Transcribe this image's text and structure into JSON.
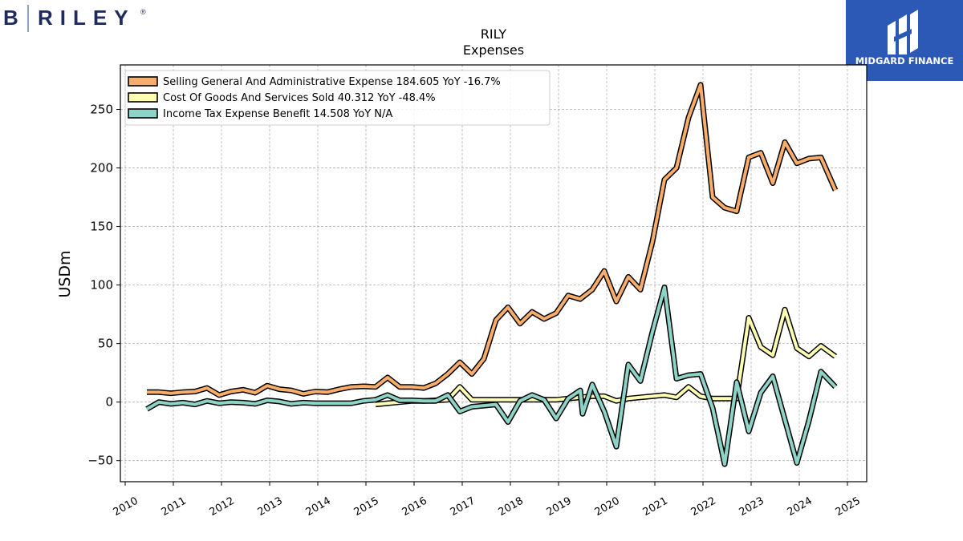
{
  "brand": {
    "left_logo": {
      "b": "B",
      "word": "RILEY",
      "mark": "®",
      "color": "#1d2b5e"
    },
    "right_logo": {
      "text": "MIDGARD FINANCE",
      "color": "#2b59b5"
    }
  },
  "chart_data": {
    "type": "line",
    "title": "RILY",
    "subtitle": "Expenses",
    "ylabel": "USDm",
    "xlabel": "",
    "xlim": [
      2009.9,
      2025.4
    ],
    "ylim": [
      -68,
      288
    ],
    "yticks": [
      -50,
      0,
      50,
      100,
      150,
      200,
      250
    ],
    "ytick_labels": [
      "−50",
      "0",
      "50",
      "100",
      "150",
      "200",
      "250"
    ],
    "xticks": [
      2010,
      2011,
      2012,
      2013,
      2014,
      2015,
      2016,
      2017,
      2018,
      2019,
      2020,
      2021,
      2022,
      2023,
      2024,
      2025
    ],
    "xtick_labels": [
      "2010",
      "2011",
      "2012",
      "2013",
      "2014",
      "2015",
      "2016",
      "2017",
      "2018",
      "2019",
      "2020",
      "2021",
      "2022",
      "2023",
      "2024",
      "2025"
    ],
    "grid": true,
    "legend_position": "top-left",
    "series": [
      {
        "name": "Selling General And Administrative Expense",
        "legend_label": "Selling General And Administrative Expense  184.605 YoY -16.7%",
        "color": "#f9ad6a",
        "points": [
          [
            2010.45,
            8.5
          ],
          [
            2010.7,
            8.5
          ],
          [
            2010.95,
            7.5
          ],
          [
            2011.2,
            8.5
          ],
          [
            2011.45,
            9
          ],
          [
            2011.7,
            12
          ],
          [
            2011.95,
            6
          ],
          [
            2012.2,
            9
          ],
          [
            2012.45,
            10.5
          ],
          [
            2012.7,
            8
          ],
          [
            2012.95,
            14
          ],
          [
            2013.2,
            11
          ],
          [
            2013.45,
            10
          ],
          [
            2013.7,
            7
          ],
          [
            2013.95,
            9
          ],
          [
            2014.2,
            8.5
          ],
          [
            2014.45,
            11
          ],
          [
            2014.7,
            13
          ],
          [
            2014.95,
            13.5
          ],
          [
            2015.2,
            13
          ],
          [
            2015.45,
            21
          ],
          [
            2015.7,
            13
          ],
          [
            2015.95,
            13
          ],
          [
            2016.2,
            12
          ],
          [
            2016.45,
            16
          ],
          [
            2016.7,
            24
          ],
          [
            2016.95,
            34
          ],
          [
            2017.2,
            24
          ],
          [
            2017.45,
            37
          ],
          [
            2017.7,
            70
          ],
          [
            2017.95,
            81
          ],
          [
            2018.2,
            67
          ],
          [
            2018.45,
            77
          ],
          [
            2018.7,
            71
          ],
          [
            2018.95,
            76
          ],
          [
            2019.2,
            91
          ],
          [
            2019.45,
            88
          ],
          [
            2019.7,
            96
          ],
          [
            2019.95,
            112
          ],
          [
            2020.2,
            86
          ],
          [
            2020.45,
            107
          ],
          [
            2020.7,
            96
          ],
          [
            2020.95,
            137
          ],
          [
            2021.2,
            190
          ],
          [
            2021.45,
            200
          ],
          [
            2021.7,
            243
          ],
          [
            2021.95,
            271
          ],
          [
            2022.2,
            175
          ],
          [
            2022.45,
            166
          ],
          [
            2022.7,
            163
          ],
          [
            2022.95,
            209
          ],
          [
            2023.2,
            213
          ],
          [
            2023.45,
            187
          ],
          [
            2023.7,
            222
          ],
          [
            2023.95,
            204
          ],
          [
            2024.2,
            208
          ],
          [
            2024.45,
            209
          ],
          [
            2024.75,
            181
          ]
        ]
      },
      {
        "name": "Cost Of Goods And Services Sold",
        "legend_label": "Cost Of Goods And Services Sold  40.312 YoY -48.4%",
        "color": "#ffffb3",
        "points": [
          [
            2015.2,
            -2
          ],
          [
            2015.45,
            -1
          ],
          [
            2015.7,
            0
          ],
          [
            2015.95,
            1
          ],
          [
            2016.2,
            1
          ],
          [
            2016.45,
            1.5
          ],
          [
            2016.7,
            2
          ],
          [
            2016.95,
            13
          ],
          [
            2017.2,
            2
          ],
          [
            2017.45,
            2
          ],
          [
            2017.7,
            2
          ],
          [
            2017.95,
            2
          ],
          [
            2018.2,
            2
          ],
          [
            2018.45,
            2
          ],
          [
            2018.7,
            2
          ],
          [
            2018.95,
            2
          ],
          [
            2019.2,
            3
          ],
          [
            2019.45,
            4
          ],
          [
            2019.7,
            5
          ],
          [
            2019.95,
            5
          ],
          [
            2020.2,
            1
          ],
          [
            2020.45,
            3
          ],
          [
            2020.7,
            4
          ],
          [
            2020.95,
            5
          ],
          [
            2021.2,
            6
          ],
          [
            2021.45,
            4
          ],
          [
            2021.7,
            13
          ],
          [
            2021.95,
            5
          ],
          [
            2022.2,
            3
          ],
          [
            2022.45,
            3
          ],
          [
            2022.7,
            3
          ],
          [
            2022.95,
            72
          ],
          [
            2023.2,
            47
          ],
          [
            2023.45,
            40
          ],
          [
            2023.7,
            79
          ],
          [
            2023.95,
            46
          ],
          [
            2024.2,
            39
          ],
          [
            2024.45,
            48
          ],
          [
            2024.75,
            39
          ]
        ]
      },
      {
        "name": "Income Tax Expense Benefit",
        "legend_label": "Income Tax Expense Benefit  14.508 YoY N/A",
        "color": "#8dd3c7",
        "points": [
          [
            2010.45,
            -6
          ],
          [
            2010.7,
            0
          ],
          [
            2010.95,
            -1.5
          ],
          [
            2011.2,
            -0.5
          ],
          [
            2011.45,
            -2
          ],
          [
            2011.7,
            1
          ],
          [
            2011.95,
            -1
          ],
          [
            2012.2,
            0
          ],
          [
            2012.45,
            -0.5
          ],
          [
            2012.7,
            -1.5
          ],
          [
            2012.95,
            1.5
          ],
          [
            2013.2,
            0.5
          ],
          [
            2013.45,
            -1.5
          ],
          [
            2013.7,
            -0.5
          ],
          [
            2013.95,
            -1
          ],
          [
            2014.2,
            -1
          ],
          [
            2014.45,
            -1
          ],
          [
            2014.7,
            -1
          ],
          [
            2014.95,
            1
          ],
          [
            2015.2,
            2
          ],
          [
            2015.45,
            6
          ],
          [
            2015.7,
            1.5
          ],
          [
            2015.95,
            1.5
          ],
          [
            2016.2,
            1
          ],
          [
            2016.45,
            1
          ],
          [
            2016.7,
            6
          ],
          [
            2016.95,
            -8
          ],
          [
            2017.2,
            -4
          ],
          [
            2017.45,
            -3
          ],
          [
            2017.7,
            -2
          ],
          [
            2017.95,
            -17
          ],
          [
            2018.2,
            1
          ],
          [
            2018.45,
            6
          ],
          [
            2018.7,
            2
          ],
          [
            2018.95,
            -14
          ],
          [
            2019.2,
            3
          ],
          [
            2019.45,
            10
          ],
          [
            2019.5,
            -10
          ],
          [
            2019.7,
            15
          ],
          [
            2019.95,
            -8
          ],
          [
            2020.2,
            -38
          ],
          [
            2020.45,
            32
          ],
          [
            2020.7,
            18
          ],
          [
            2020.95,
            60
          ],
          [
            2021.2,
            98
          ],
          [
            2021.45,
            20
          ],
          [
            2021.7,
            23
          ],
          [
            2021.95,
            24
          ],
          [
            2022.2,
            -5
          ],
          [
            2022.45,
            -53
          ],
          [
            2022.7,
            17
          ],
          [
            2022.95,
            -25
          ],
          [
            2023.2,
            8
          ],
          [
            2023.45,
            22
          ],
          [
            2023.7,
            -15
          ],
          [
            2023.95,
            -52
          ],
          [
            2024.2,
            -16
          ],
          [
            2024.45,
            26
          ],
          [
            2024.75,
            13
          ]
        ]
      }
    ]
  }
}
